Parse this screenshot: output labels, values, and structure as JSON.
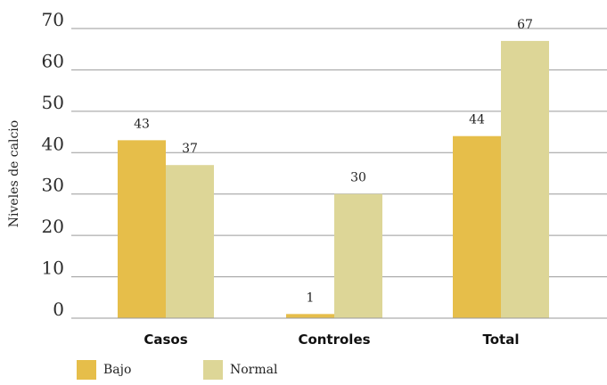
{
  "chart_data": {
    "type": "bar",
    "title": "",
    "xlabel": "",
    "ylabel": "Niveles de calcio",
    "categories": [
      "Casos",
      "Controles",
      "Total"
    ],
    "series": [
      {
        "name": "Bajo",
        "values": [
          43,
          1,
          44
        ],
        "color": "#e6be4a"
      },
      {
        "name": "Normal",
        "values": [
          37,
          30,
          67
        ],
        "color": "#ddd697"
      }
    ],
    "yticks": [
      "0",
      "10",
      "20",
      "30",
      "40",
      "50",
      "60",
      "70"
    ],
    "ylim": [
      0,
      70
    ],
    "grid": "horizontal",
    "legend_position": "bottom-left"
  }
}
